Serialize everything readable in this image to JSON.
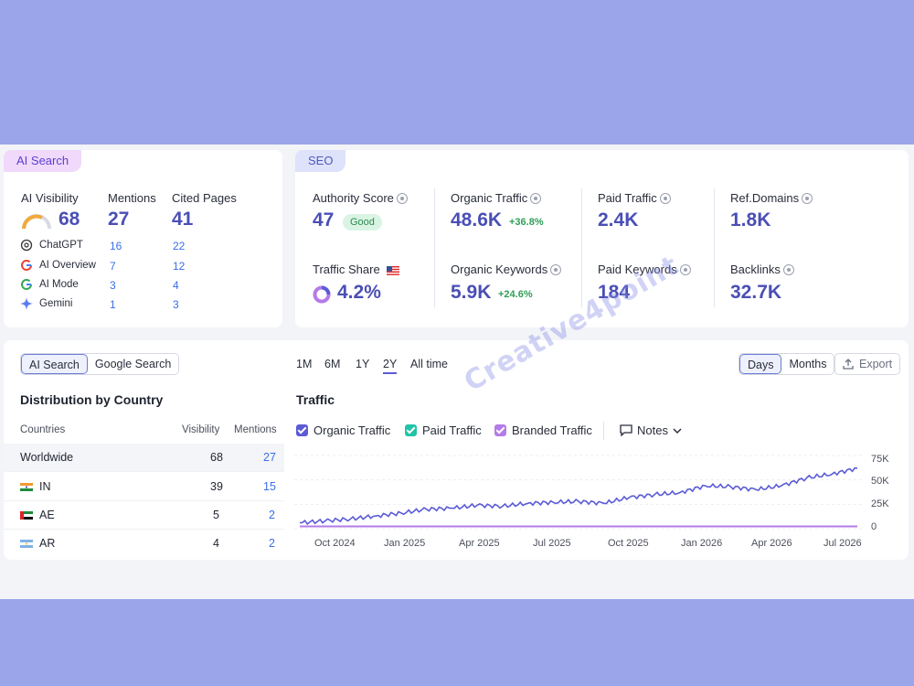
{
  "ai_card": {
    "tag": "AI Search",
    "headers": {
      "visibility": "AI Visibility",
      "mentions": "Mentions",
      "cited": "Cited Pages"
    },
    "totals": {
      "visibility": "68",
      "mentions": "27",
      "cited": "41"
    },
    "visibility_gauge_fraction": 0.68,
    "rows": [
      {
        "name": "ChatGPT",
        "icon": "chatgpt-icon",
        "mentions": "16",
        "cited": "22"
      },
      {
        "name": "AI Overview",
        "icon": "google-icon",
        "mentions": "7",
        "cited": "12"
      },
      {
        "name": "AI Mode",
        "icon": "google-icon",
        "mentions": "3",
        "cited": "4"
      },
      {
        "name": "Gemini",
        "icon": "gemini-icon",
        "mentions": "1",
        "cited": "3"
      }
    ]
  },
  "seo_card": {
    "tag": "SEO",
    "authority": {
      "label": "Authority Score",
      "value": "47",
      "badge": "Good"
    },
    "organic_traffic": {
      "label": "Organic Traffic",
      "value": "48.6K",
      "delta": "+36.8%"
    },
    "paid_traffic": {
      "label": "Paid Traffic",
      "value": "2.4K"
    },
    "ref_domains": {
      "label": "Ref.Domains",
      "value": "1.8K"
    },
    "traffic_share": {
      "label": "Traffic Share",
      "value": "4.2%",
      "flag": "us-flag-icon"
    },
    "organic_keywords": {
      "label": "Organic Keywords",
      "value": "5.9K",
      "delta": "+24.6%"
    },
    "paid_keywords": {
      "label": "Paid Keywords",
      "value": "184"
    },
    "backlinks": {
      "label": "Backlinks",
      "value": "32.7K"
    }
  },
  "bottom": {
    "toggle": {
      "ai": "AI Search",
      "google": "Google Search"
    },
    "dist_title": "Distribution by Country",
    "columns": {
      "country": "Countries",
      "visibility": "Visibility",
      "mentions": "Mentions"
    },
    "countries": [
      {
        "name": "Worldwide",
        "visibility": "68",
        "mentions": "27",
        "flag": ""
      },
      {
        "name": "IN",
        "visibility": "39",
        "mentions": "15",
        "flag": "india-flag-icon"
      },
      {
        "name": "AE",
        "visibility": "5",
        "mentions": "2",
        "flag": "uae-flag-icon"
      },
      {
        "name": "AR",
        "visibility": "4",
        "mentions": "2",
        "flag": "argentina-flag-icon"
      }
    ],
    "ranges": [
      "1M",
      "6M",
      "1Y",
      "2Y",
      "All time"
    ],
    "selected_range": "2Y",
    "traffic_title": "Traffic",
    "legend": [
      "Organic Traffic",
      "Paid Traffic",
      "Branded Traffic"
    ],
    "notes": "Notes",
    "days": "Days",
    "months": "Months",
    "export": "Export",
    "watermark": "Creative4point"
  },
  "colors": {
    "organic": "#5b5bd6",
    "paid": "#22c3a6",
    "branded": "#b57be8",
    "accent": "#4a4fb5"
  },
  "chart_data": {
    "type": "line",
    "title": "Traffic",
    "x_ticks": [
      "Oct 2024",
      "Jan 2025",
      "Apr 2025",
      "Jul 2025",
      "Oct 2025",
      "Jan 2026",
      "Apr 2026",
      "Jul 2026"
    ],
    "y_ticks": [
      "75K",
      "50K",
      "25K",
      "0"
    ],
    "ylim": [
      0,
      75000
    ],
    "series": [
      {
        "name": "Organic Traffic",
        "x": [
          "2024-09",
          "2024-10",
          "2024-11",
          "2024-12",
          "2025-01",
          "2025-02",
          "2025-03",
          "2025-04",
          "2025-05",
          "2025-06",
          "2025-07",
          "2025-08",
          "2025-09",
          "2025-10",
          "2025-11",
          "2025-12",
          "2026-01",
          "2026-02",
          "2026-03",
          "2026-04",
          "2026-05",
          "2026-06",
          "2026-07"
        ],
        "values": [
          6000,
          8000,
          10000,
          13000,
          16000,
          20000,
          21000,
          24000,
          23000,
          26000,
          27000,
          28000,
          26000,
          32000,
          35000,
          37000,
          44000,
          43000,
          40000,
          44000,
          52000,
          56000,
          62000
        ]
      },
      {
        "name": "Paid Traffic",
        "x": [
          "2024-09",
          "2025-01",
          "2025-04",
          "2025-07",
          "2025-10",
          "2026-01",
          "2026-04",
          "2026-07"
        ],
        "values": [
          2400,
          2400,
          2400,
          2400,
          2400,
          2400,
          2400,
          2400
        ]
      }
    ]
  }
}
